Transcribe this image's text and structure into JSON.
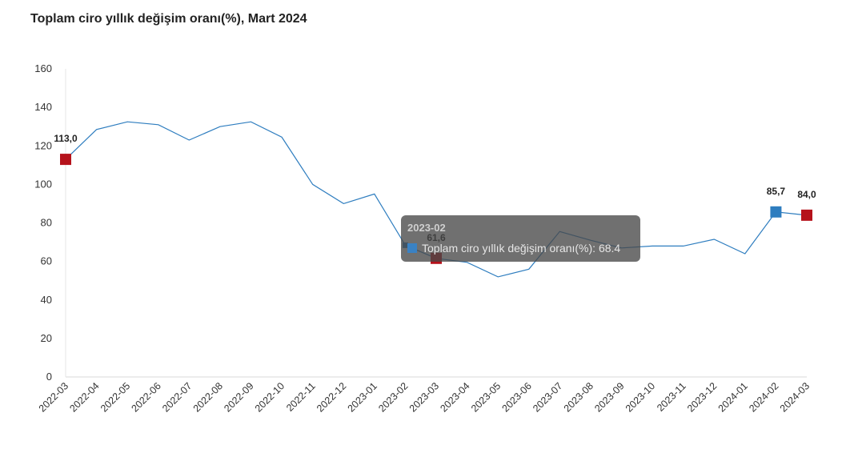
{
  "title": "Toplam ciro yıllık değişim oranı(%), Mart 2024",
  "colors": {
    "line": "#2e7dbf",
    "highlight_red": "#b5121b",
    "highlight_blue": "#2e7dbf"
  },
  "tooltip": {
    "title": "2023-02",
    "series_label": "Toplam ciro yıllık değişim oranı(%): 68.4"
  },
  "chart_data": {
    "type": "line",
    "title": "Toplam ciro yıllık değişim oranı(%), Mart 2024",
    "xlabel": "",
    "ylabel": "",
    "ylim": [
      0,
      160
    ],
    "yticks": [
      0,
      20,
      40,
      60,
      80,
      100,
      120,
      140,
      160
    ],
    "grid": false,
    "categories": [
      "2022-03",
      "2022-04",
      "2022-05",
      "2022-06",
      "2022-07",
      "2022-08",
      "2022-09",
      "2022-10",
      "2022-11",
      "2022-12",
      "2023-01",
      "2023-02",
      "2023-03",
      "2023-04",
      "2023-05",
      "2023-06",
      "2023-07",
      "2023-08",
      "2023-09",
      "2023-10",
      "2023-11",
      "2023-12",
      "2024-01",
      "2024-02",
      "2024-03"
    ],
    "series": [
      {
        "name": "Toplam ciro yıllık değişim oranı(%)",
        "values": [
          113.0,
          128.5,
          132.5,
          131.0,
          123.0,
          130.0,
          132.5,
          124.5,
          100.0,
          90.0,
          95.0,
          68.4,
          61.6,
          59.5,
          52.0,
          56.0,
          75.5,
          71.0,
          67.0,
          68.0,
          68.0,
          71.5,
          64.0,
          85.7,
          84.0
        ]
      }
    ],
    "data_labels": [
      {
        "category": "2022-03",
        "text": "113,0",
        "marker": "red"
      },
      {
        "category": "2023-03",
        "text": "61,6",
        "marker": "red"
      },
      {
        "category": "2024-02",
        "text": "85,7",
        "marker": "blue"
      },
      {
        "category": "2024-03",
        "text": "84,0",
        "marker": "red"
      }
    ]
  }
}
